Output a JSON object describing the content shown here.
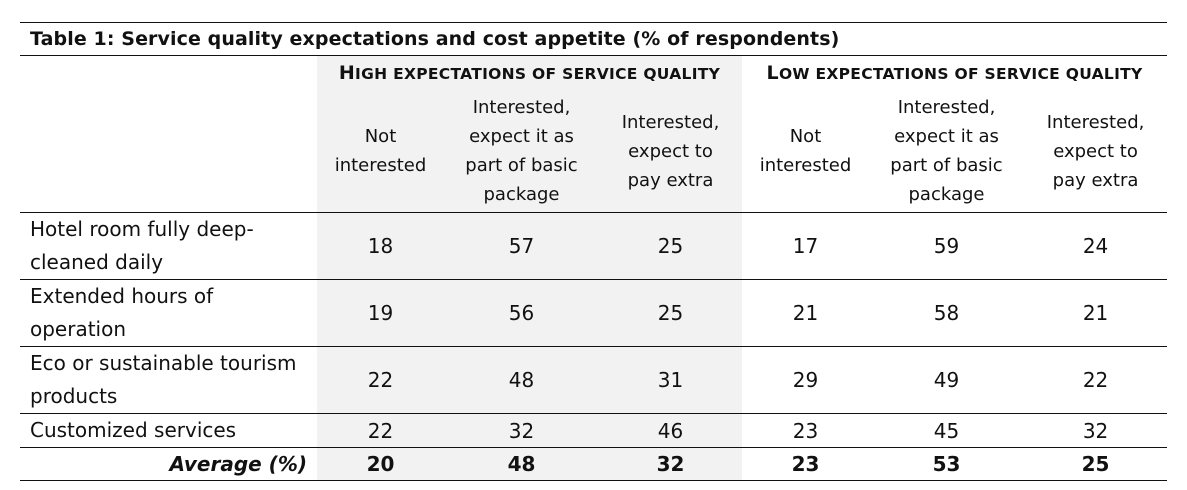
{
  "table": {
    "title": "Table 1: Service quality expectations and cost appetite (% of respondents)",
    "groups": [
      {
        "first": "H",
        "rest": "IGH EXPECTATIONS OF SERVICE QUALITY"
      },
      {
        "first": "L",
        "rest": "OW EXPECTATIONS OF SERVICE QUALITY"
      }
    ],
    "subheaders": [
      [
        "Not",
        "interested"
      ],
      [
        "Interested,",
        "expect it as",
        "part of basic",
        "package"
      ],
      [
        "Interested,",
        "expect to",
        "pay extra"
      ],
      [
        "Not",
        "interested"
      ],
      [
        "Interested,",
        "expect it as",
        "part of basic",
        "package"
      ],
      [
        "Interested,",
        "expect to",
        "pay extra"
      ]
    ],
    "rows": [
      {
        "label": [
          "Hotel room fully deep-",
          "cleaned daily"
        ],
        "values": [
          "18",
          "57",
          "25",
          "17",
          "59",
          "24"
        ]
      },
      {
        "label": [
          "Extended hours of",
          "operation"
        ],
        "values": [
          "19",
          "56",
          "25",
          "21",
          "58",
          "21"
        ]
      },
      {
        "label": [
          "Eco or sustainable tourism",
          "products"
        ],
        "values": [
          "22",
          "48",
          "31",
          "29",
          "49",
          "22"
        ]
      },
      {
        "label": [
          "Customized services"
        ],
        "values": [
          "22",
          "32",
          "46",
          "23",
          "45",
          "32"
        ]
      }
    ],
    "average": {
      "label": "Average (%)",
      "values": [
        "20",
        "48",
        "32",
        "23",
        "53",
        "25"
      ]
    }
  }
}
